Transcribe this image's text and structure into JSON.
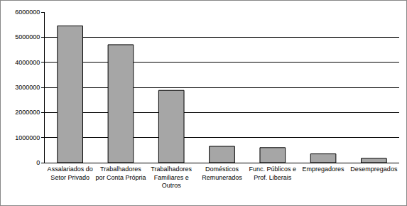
{
  "chart_data": {
    "type": "bar",
    "categories": [
      "Assalariados do\nSetor Privado",
      "Trabalhadores\npor Conta Própria",
      "Trabalhadores\nFamiliares e\nOutros",
      "Domésticos\nRemunerados",
      "Func. Públicos e\nProf. Liberais",
      "Empregadores",
      "Desempregados"
    ],
    "values": [
      5450000,
      4700000,
      2880000,
      650000,
      600000,
      350000,
      170000
    ],
    "color": "#a6a6a6",
    "ylim": [
      0,
      6000000
    ],
    "yticks": [
      0,
      1000000,
      2000000,
      3000000,
      4000000,
      5000000,
      6000000
    ],
    "grid": true
  }
}
